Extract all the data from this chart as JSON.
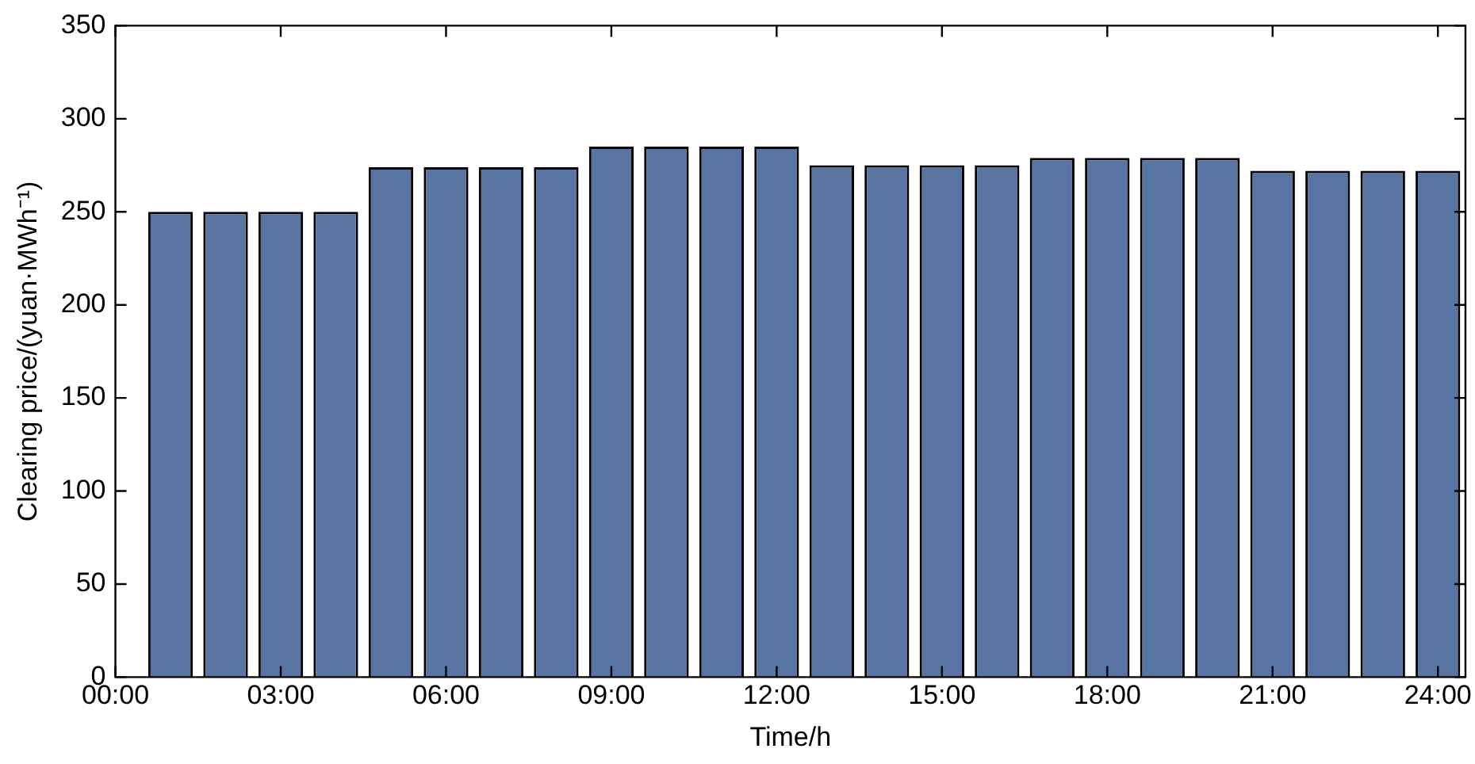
{
  "chart_data": {
    "type": "bar",
    "xlabel": "Time/h",
    "ylabel": "Clearing price/(yuan·MWh⁻¹)",
    "x": [
      1,
      2,
      3,
      4,
      5,
      6,
      7,
      8,
      9,
      10,
      11,
      12,
      13,
      14,
      15,
      16,
      17,
      18,
      19,
      20,
      21,
      22,
      23,
      24
    ],
    "values": [
      250,
      250,
      250,
      250,
      274,
      274,
      274,
      274,
      285,
      285,
      285,
      285,
      275,
      275,
      275,
      275,
      279,
      279,
      279,
      279,
      272,
      272,
      272,
      272
    ],
    "color": "#5874a2",
    "xlim": [
      0,
      24.5
    ],
    "xticks": [
      {
        "value": 0,
        "label": "00:00"
      },
      {
        "value": 3,
        "label": "03:00"
      },
      {
        "value": 6,
        "label": "06:00"
      },
      {
        "value": 9,
        "label": "09:00"
      },
      {
        "value": 12,
        "label": "12:00"
      },
      {
        "value": 15,
        "label": "15:00"
      },
      {
        "value": 18,
        "label": "18:00"
      },
      {
        "value": 21,
        "label": "21:00"
      },
      {
        "value": 24,
        "label": "24:00"
      }
    ],
    "ylim": [
      0,
      350
    ],
    "yticks": [
      0,
      50,
      100,
      150,
      200,
      250,
      300,
      350
    ],
    "grid": false,
    "legend": false
  }
}
